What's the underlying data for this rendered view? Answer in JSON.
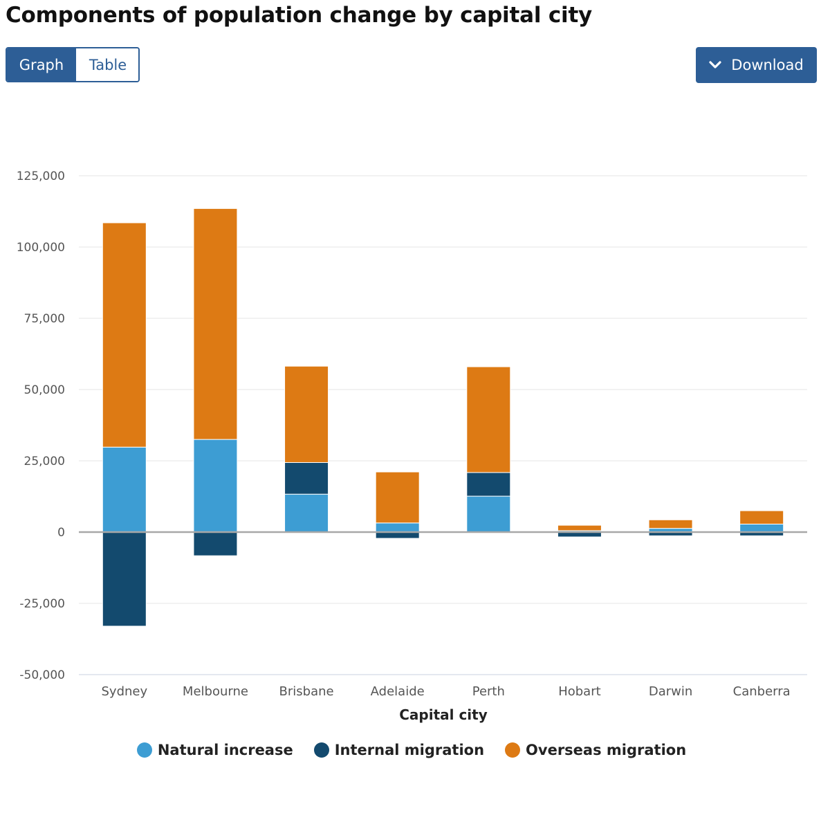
{
  "header": {
    "title": "Components of population change by capital city"
  },
  "view_toggle": {
    "graph_label": "Graph",
    "table_label": "Table",
    "active": "Graph"
  },
  "download": {
    "label": "Download",
    "icon": "chevron-down-icon"
  },
  "colors": {
    "natural_increase": "#3d9dd3",
    "internal_migration": "#134a6e",
    "overseas_migration": "#dd7a14",
    "gridline": "#e4e4e4",
    "zero_line": "#a8a8a8",
    "accent": "#2d5e96"
  },
  "chart_data": {
    "type": "bar",
    "stacked": true,
    "title": "Components of population change by capital city",
    "xlabel": "Capital city",
    "ylabel": "",
    "ylim": [
      -50000,
      125000
    ],
    "yticks": [
      -50000,
      -25000,
      0,
      25000,
      50000,
      75000,
      100000,
      125000
    ],
    "ytick_labels": [
      "-50,000",
      "-25,000",
      "0",
      "25,000",
      "50,000",
      "75,000",
      "100,000",
      "125,000"
    ],
    "categories": [
      "Sydney",
      "Melbourne",
      "Brisbane",
      "Adelaide",
      "Perth",
      "Hobart",
      "Darwin",
      "Canberra"
    ],
    "series": [
      {
        "name": "Natural increase",
        "key": "natural_increase",
        "values": [
          29800,
          32500,
          13300,
          3200,
          12600,
          500,
          1300,
          2800
        ]
      },
      {
        "name": "Internal migration",
        "key": "internal_migration",
        "values": [
          -33000,
          -8300,
          11100,
          -2200,
          8300,
          -1700,
          -1300,
          -1300
        ]
      },
      {
        "name": "Overseas migration",
        "key": "overseas_migration",
        "values": [
          78700,
          81000,
          33800,
          17900,
          37100,
          1900,
          3000,
          4700
        ]
      }
    ],
    "legend_position": "bottom",
    "grid": true
  }
}
